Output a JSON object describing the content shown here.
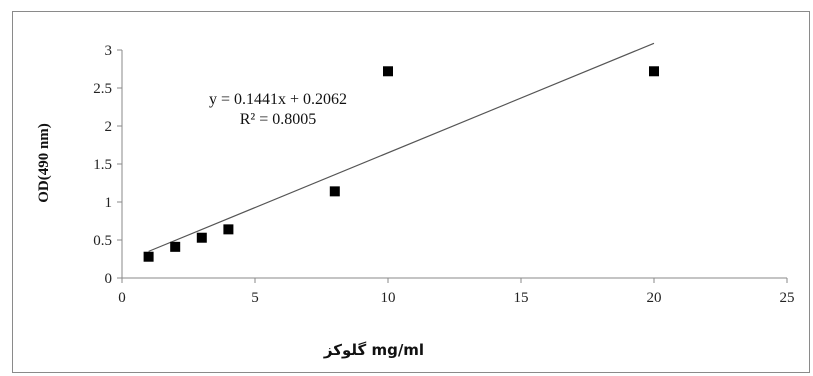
{
  "chart_data": {
    "type": "scatter",
    "x": [
      1,
      2,
      3,
      4,
      8,
      10,
      20
    ],
    "y": [
      0.28,
      0.41,
      0.53,
      0.64,
      1.14,
      2.72,
      2.72
    ],
    "trendline": {
      "slope": 0.1441,
      "intercept": 0.2062,
      "x_range": [
        1,
        20
      ]
    },
    "equation": "y = 0.1441x + 0.2062",
    "r_squared": "R² = 0.8005",
    "xlabel": "mg/ml گلوکز",
    "ylabel": "OD(490 nm)",
    "xlim": [
      0,
      25
    ],
    "ylim": [
      0,
      3
    ],
    "xticks": [
      "0",
      "5",
      "10",
      "15",
      "20",
      "25"
    ],
    "yticks": [
      "0",
      "0.5",
      "1",
      "1.5",
      "2",
      "2.5",
      "3"
    ],
    "grid": false,
    "legend": "none",
    "marker_color": "#000000",
    "line_color": "#555555"
  }
}
